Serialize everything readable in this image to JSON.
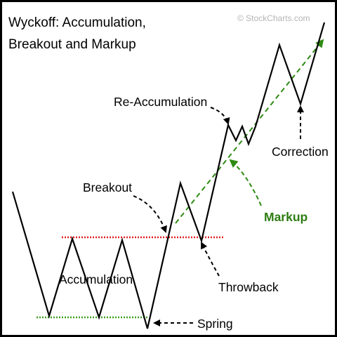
{
  "title_line1": "Wyckoff: Accumulation,",
  "title_line2": "Breakout and Markup",
  "watermark": "© StockCharts.com",
  "labels": {
    "accumulation": "Accumulation",
    "breakout": "Breakout",
    "re_accumulation": "Re-Accumulation",
    "correction": "Correction",
    "markup": "Markup",
    "throwback": "Throwback",
    "spring": "Spring"
  },
  "colors": {
    "price_line": "#000000",
    "resistance_line": "#e02020",
    "support_line": "#3aa020",
    "markup_arrow": "#2e8b12",
    "markup_text": "#2e7d12",
    "annotation_arrow": "#000000",
    "watermark": "#b5b5b5"
  }
}
